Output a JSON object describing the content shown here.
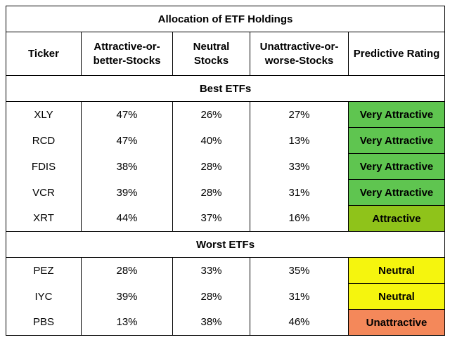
{
  "title": "Allocation of ETF Holdings",
  "columns": [
    "Ticker",
    "Attractive-or-better-Stocks",
    "Neutral Stocks",
    "Unattractive-or-worse-Stocks",
    "Predictive Rating"
  ],
  "sections": [
    {
      "label": "Best ETFs",
      "rows": [
        {
          "cells": [
            "XLY",
            "47%",
            "26%",
            "27%",
            "Very Attractive"
          ],
          "color": "#5fc550"
        },
        {
          "cells": [
            "RCD",
            "47%",
            "40%",
            "13%",
            "Very Attractive"
          ],
          "color": "#5fc550"
        },
        {
          "cells": [
            "FDIS",
            "38%",
            "28%",
            "33%",
            "Very Attractive"
          ],
          "color": "#5fc550"
        },
        {
          "cells": [
            "VCR",
            "39%",
            "28%",
            "31%",
            "Very Attractive"
          ],
          "color": "#5fc550"
        },
        {
          "cells": [
            "XRT",
            "44%",
            "37%",
            "16%",
            "Attractive"
          ],
          "color": "#8fc31a"
        }
      ]
    },
    {
      "label": "Worst ETFs",
      "rows": [
        {
          "cells": [
            "PEZ",
            "28%",
            "33%",
            "35%",
            "Neutral"
          ],
          "color": "#f5f50e"
        },
        {
          "cells": [
            "IYC",
            "39%",
            "28%",
            "31%",
            "Neutral"
          ],
          "color": "#f5f50e"
        },
        {
          "cells": [
            "PBS",
            "13%",
            "38%",
            "46%",
            "Unattractive"
          ],
          "color": "#f4885a"
        }
      ]
    }
  ]
}
